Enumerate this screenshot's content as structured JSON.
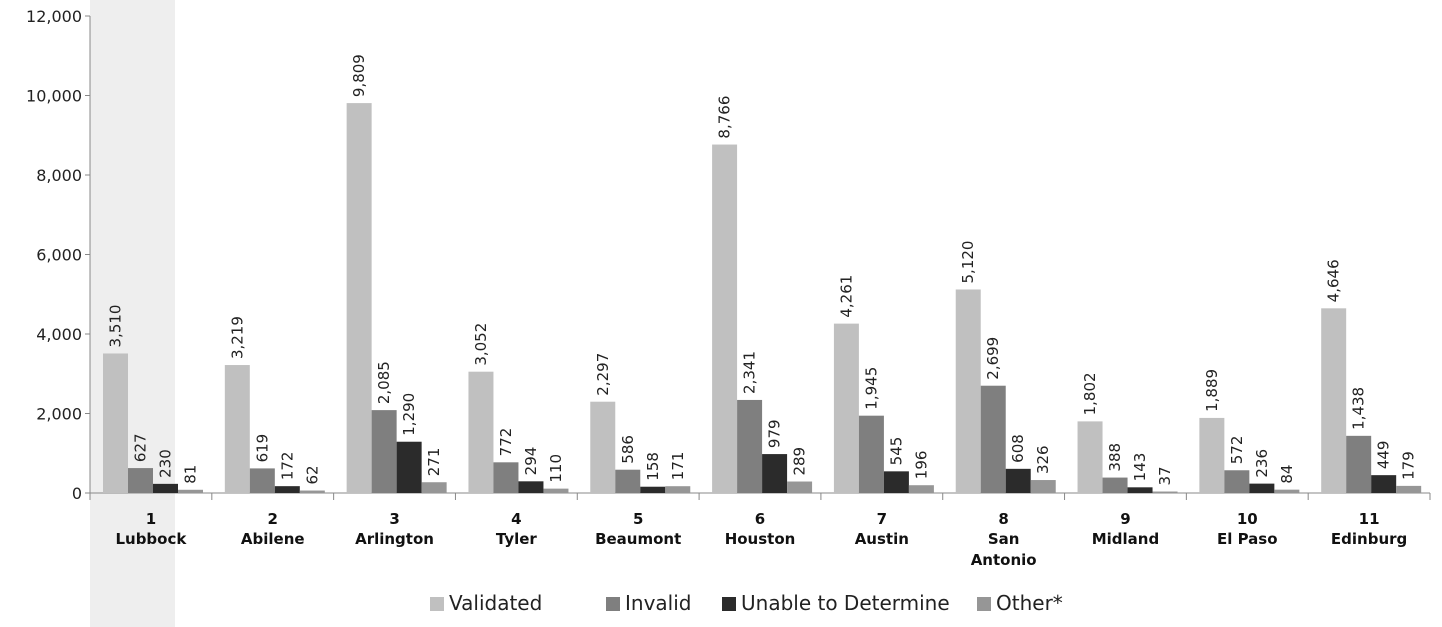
{
  "chart_data": {
    "type": "bar",
    "title": "",
    "xlabel": "",
    "ylabel": "",
    "ylim": [
      0,
      12000
    ],
    "yticks": [
      0,
      2000,
      4000,
      6000,
      8000,
      10000,
      12000
    ],
    "ytick_labels": [
      "0",
      "2,000",
      "4,000",
      "6,000",
      "8,000",
      "10,000",
      "12,000"
    ],
    "grid": false,
    "legend_position": "bottom",
    "categories": [
      {
        "number": "1",
        "name": [
          "Lubbock"
        ]
      },
      {
        "number": "2",
        "name": [
          "Abilene"
        ]
      },
      {
        "number": "3",
        "name": [
          "Arlington"
        ]
      },
      {
        "number": "4",
        "name": [
          "Tyler"
        ]
      },
      {
        "number": "5",
        "name": [
          "Beaumont"
        ]
      },
      {
        "number": "6",
        "name": [
          "Houston"
        ]
      },
      {
        "number": "7",
        "name": [
          "Austin"
        ]
      },
      {
        "number": "8",
        "name": [
          "San",
          "Antonio"
        ]
      },
      {
        "number": "9",
        "name": [
          "Midland"
        ]
      },
      {
        "number": "10",
        "name": [
          "El Paso"
        ]
      },
      {
        "number": "11",
        "name": [
          "Edinburg"
        ]
      }
    ],
    "series": [
      {
        "name": "Validated",
        "color": "#c0c0c0",
        "values": [
          3510,
          3219,
          9809,
          3052,
          2297,
          8766,
          4261,
          5120,
          1802,
          1889,
          4646
        ],
        "labels": [
          "3,510",
          "3,219",
          "9,809",
          "3,052",
          "2,297",
          "8,766",
          "4,261",
          "5,120",
          "1,802",
          "1,889",
          "4,646"
        ]
      },
      {
        "name": "Invalid",
        "color": "#7f7f7f",
        "values": [
          627,
          619,
          2085,
          772,
          586,
          2341,
          1945,
          2699,
          388,
          572,
          1438
        ],
        "labels": [
          "627",
          "619",
          "2,085",
          "772",
          "586",
          "2,341",
          "1,945",
          "2,699",
          "388",
          "572",
          "1,438"
        ]
      },
      {
        "name": "Unable to Determine",
        "color": "#2b2b2b",
        "values": [
          230,
          172,
          1290,
          294,
          158,
          979,
          545,
          608,
          143,
          236,
          449
        ],
        "labels": [
          "230",
          "172",
          "1,290",
          "294",
          "158",
          "979",
          "545",
          "608",
          "143",
          "236",
          "449"
        ]
      },
      {
        "name": "Other*",
        "color": "#969696",
        "values": [
          81,
          62,
          271,
          110,
          171,
          289,
          196,
          326,
          37,
          84,
          179
        ],
        "labels": [
          "81",
          "62",
          "271",
          "110",
          "171",
          "289",
          "196",
          "326",
          "37",
          "84",
          "179"
        ]
      }
    ],
    "highlight_band_color": "#eeeeee"
  }
}
